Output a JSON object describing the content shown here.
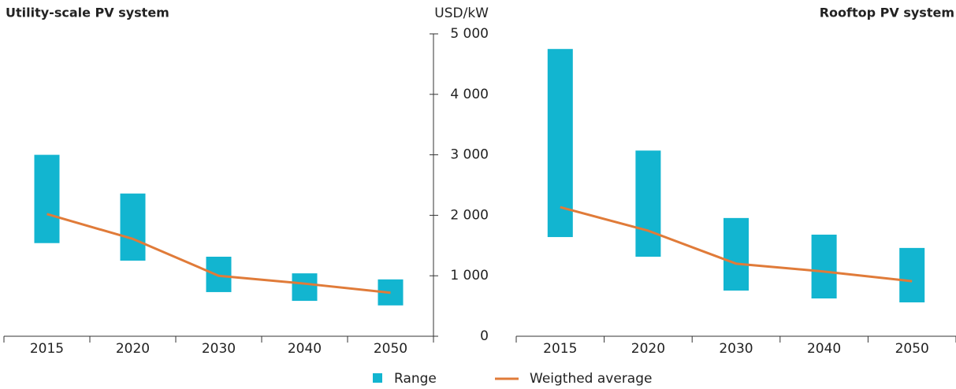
{
  "chart_data": {
    "type": "range",
    "ylabel": "USD/kW",
    "ylim": [
      0,
      5000
    ],
    "yticks": [
      0,
      {
        "value": 1000,
        "label": "1 000"
      },
      {
        "value": 2000,
        "label": "2 000"
      },
      {
        "value": 3000,
        "label": "3 000"
      },
      {
        "value": 4000,
        "label": "4 000"
      },
      {
        "value": 5000,
        "label": "5 000"
      }
    ],
    "panels": [
      {
        "title": "Utility-scale PV system",
        "categories": [
          "2015",
          "2020",
          "2030",
          "2040",
          "2050"
        ],
        "series": [
          {
            "name": "Range",
            "color": "#12b5d0",
            "low": [
              1540,
              1250,
              730,
              585,
              510
            ],
            "high": [
              3000,
              2360,
              1315,
              1040,
              940
            ]
          },
          {
            "name": "Weigthed average",
            "color": "#e07b39",
            "values": [
              2020,
              1610,
              1000,
              870,
              720
            ]
          }
        ]
      },
      {
        "title": "Rooftop PV system",
        "categories": [
          "2015",
          "2020",
          "2030",
          "2040",
          "2050"
        ],
        "series": [
          {
            "name": "Range",
            "color": "#12b5d0",
            "low": [
              1640,
              1315,
              755,
              625,
              560
            ],
            "high": [
              4750,
              3070,
              1955,
              1680,
              1460
            ]
          },
          {
            "name": "Weigthed average",
            "color": "#e07b39",
            "values": [
              2135,
              1745,
              1200,
              1070,
              910
            ]
          }
        ]
      }
    ]
  }
}
